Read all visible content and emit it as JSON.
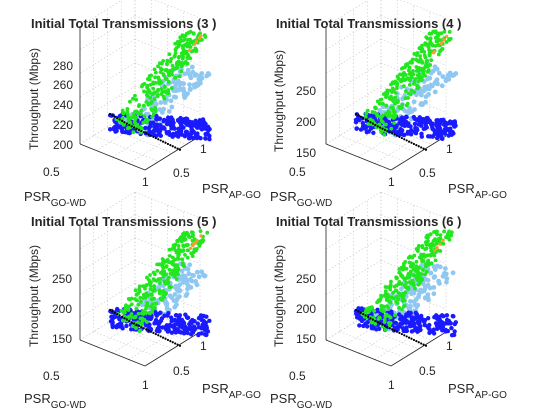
{
  "chart_data": [
    {
      "type": "scatter",
      "title": "Initial Total Transmissions (3 )",
      "ylabel": "Throughput (Mbps)",
      "xlabel": {
        "main": "PSR",
        "sub": "GO-WD"
      },
      "zlabel": {
        "main": "PSR",
        "sub": "AP-GO"
      },
      "x_ticks": [
        "0.5",
        "1"
      ],
      "z_ticks": [
        "0.5",
        "1"
      ],
      "y_ticks": [
        "200",
        "220",
        "240",
        "260",
        "280"
      ],
      "ylim": [
        190,
        285
      ],
      "series_colors": {
        "green": "#22e61e",
        "blue": "#1a1aff",
        "light_blue": "#8ec8f0",
        "black": "#000000",
        "orange": "#ff9933"
      }
    },
    {
      "type": "scatter",
      "title": "Initial Total Transmissions (4 )",
      "ylabel": "Throughput (Mbps)",
      "xlabel": {
        "main": "PSR",
        "sub": "GO-WD"
      },
      "zlabel": {
        "main": "PSR",
        "sub": "AP-GO"
      },
      "x_ticks": [
        "0.5",
        "1"
      ],
      "z_ticks": [
        "0.5",
        "1"
      ],
      "y_ticks": [
        "150",
        "200",
        "250"
      ],
      "ylim": [
        140,
        290
      ],
      "series_colors": {
        "green": "#22e61e",
        "blue": "#1a1aff",
        "light_blue": "#8ec8f0",
        "black": "#000000",
        "orange": "#ff9933"
      }
    },
    {
      "type": "scatter",
      "title": "Initial Total Transmissions (5 )",
      "ylabel": "Throughput (Mbps)",
      "xlabel": {
        "main": "PSR",
        "sub": "GO-WD"
      },
      "zlabel": {
        "main": "PSR",
        "sub": "AP-GO"
      },
      "x_ticks": [
        "0.5",
        "1"
      ],
      "z_ticks": [
        "0.5",
        "1"
      ],
      "y_ticks": [
        "150",
        "200",
        "250"
      ],
      "ylim": [
        125,
        285
      ],
      "series_colors": {
        "green": "#22e61e",
        "blue": "#1a1aff",
        "light_blue": "#8ec8f0",
        "black": "#000000",
        "orange": "#ff9933"
      }
    },
    {
      "type": "scatter",
      "title": "Initial Total Transmissions (6 )",
      "ylabel": "Throughput (Mbps)",
      "xlabel": {
        "main": "PSR",
        "sub": "GO-WD"
      },
      "zlabel": {
        "main": "PSR",
        "sub": "AP-GO"
      },
      "x_ticks": [
        "0.5",
        "1"
      ],
      "z_ticks": [
        "0.5",
        "1"
      ],
      "y_ticks": [
        "150",
        "200",
        "250"
      ],
      "ylim": [
        125,
        285
      ],
      "series_colors": {
        "green": "#22e61e",
        "blue": "#1a1aff",
        "light_blue": "#8ec8f0",
        "black": "#000000",
        "orange": "#ff9933"
      }
    }
  ]
}
